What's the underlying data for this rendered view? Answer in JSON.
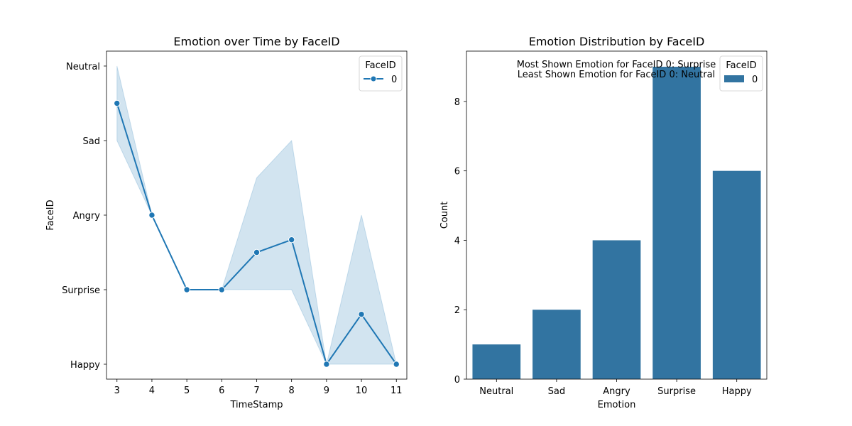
{
  "colors": {
    "series": "#1f77b4",
    "bar": "#3274a1",
    "band": "#1f77b4"
  },
  "chart_data": [
    {
      "type": "line",
      "title": "Emotion over Time by FaceID",
      "xlabel": "TimeStamp",
      "ylabel": "FaceID",
      "categories_y": [
        "Happy",
        "Surprise",
        "Angry",
        "Sad",
        "Neutral"
      ],
      "xlim": [
        2.7,
        11.3
      ],
      "ylim": [
        -0.2,
        4.2
      ],
      "x_ticks": [
        3,
        4,
        5,
        6,
        7,
        8,
        9,
        10,
        11
      ],
      "legend": {
        "title": "FaceID",
        "position": "top-right",
        "entries": [
          "0"
        ]
      },
      "series": [
        {
          "name": "0",
          "x": [
            3,
            4,
            5,
            6,
            7,
            8,
            9,
            10,
            11
          ],
          "y": [
            3.5,
            2,
            1,
            1,
            1.5,
            1.67,
            0,
            0.67,
            0
          ],
          "ci_low": [
            3,
            2,
            1,
            1,
            1,
            1,
            0,
            0,
            0
          ],
          "ci_high": [
            4,
            2,
            1,
            1,
            2.5,
            3,
            0,
            2,
            0
          ]
        }
      ]
    },
    {
      "type": "bar",
      "title": "Emotion Distribution by FaceID",
      "xlabel": "Emotion",
      "ylabel": "Count",
      "categories": [
        "Neutral",
        "Sad",
        "Angry",
        "Surprise",
        "Happy"
      ],
      "ylim": [
        0,
        9.45
      ],
      "y_ticks": [
        0,
        2,
        4,
        6,
        8
      ],
      "series": [
        {
          "name": "0",
          "values": [
            1,
            2,
            4,
            9,
            6
          ]
        }
      ],
      "legend": {
        "title": "FaceID",
        "position": "top-right",
        "entries": [
          "0"
        ]
      },
      "annotations": [
        "Most Shown Emotion for FaceID 0: Surprise",
        "Least Shown Emotion for FaceID 0: Neutral"
      ]
    }
  ]
}
